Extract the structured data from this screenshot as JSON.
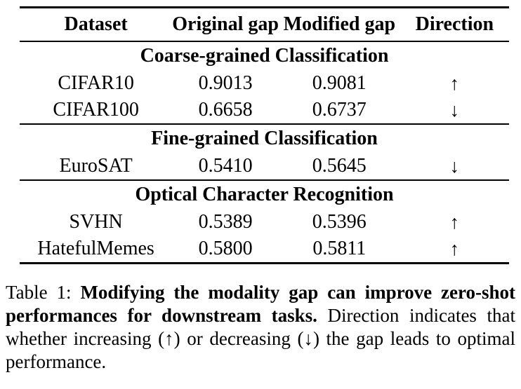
{
  "table": {
    "columns": [
      "Dataset",
      "Original gap",
      "Modified gap",
      "Direction"
    ],
    "sections": [
      {
        "title": "Coarse-grained Classification",
        "rows": [
          {
            "dataset": "CIFAR10",
            "original": "0.9013",
            "modified": "0.9081",
            "direction": "↑"
          },
          {
            "dataset": "CIFAR100",
            "original": "0.6658",
            "modified": "0.6737",
            "direction": "↓"
          }
        ]
      },
      {
        "title": "Fine-grained Classification",
        "rows": [
          {
            "dataset": "EuroSAT",
            "original": "0.5410",
            "modified": "0.5645",
            "direction": "↓"
          }
        ]
      },
      {
        "title": "Optical Character Recognition",
        "rows": [
          {
            "dataset": "SVHN",
            "original": "0.5389",
            "modified": "0.5396",
            "direction": "↑"
          },
          {
            "dataset": "HatefulMemes",
            "original": "0.5800",
            "modified": "0.5811",
            "direction": "↑"
          }
        ]
      }
    ]
  },
  "caption": {
    "label": "Table 1:",
    "bold": "Modifying the modality gap can improve zero-shot performances for downstream tasks.",
    "rest": "Direction indicates that whether increasing (↑) or decreasing (↓) the gap leads to optimal performance."
  },
  "colors": {
    "text": "#000000",
    "rule": "#000000",
    "background": "#ffffff"
  }
}
